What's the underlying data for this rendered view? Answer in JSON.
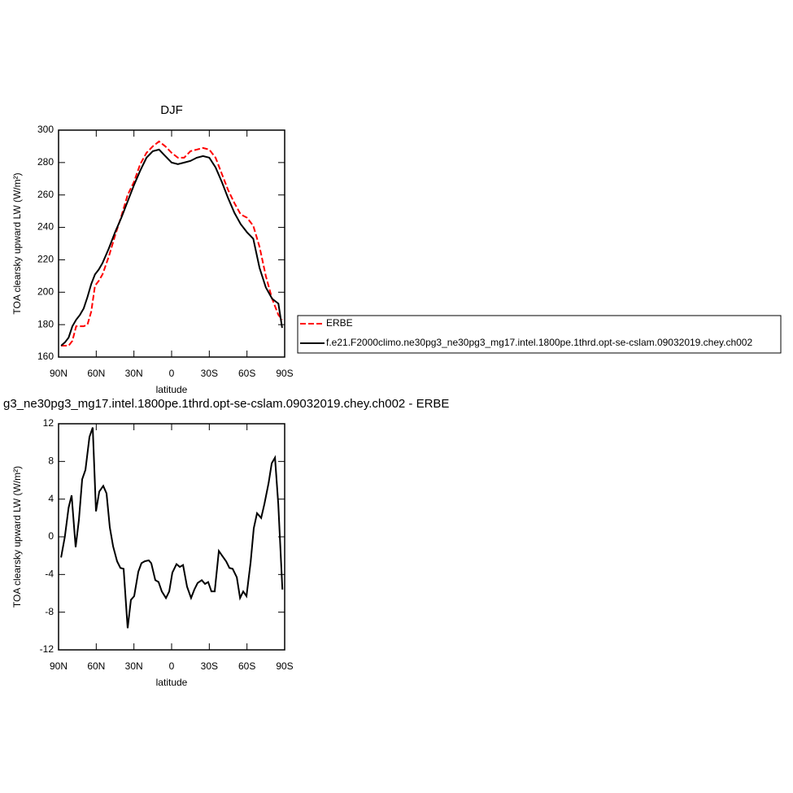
{
  "chart_data": [
    {
      "type": "line",
      "title": "DJF",
      "x_label": "latitude",
      "y_label": "TOA clearsky upward LW (W/m²)",
      "x": [
        88,
        85,
        82,
        79,
        76,
        73,
        70,
        67,
        64,
        61,
        58,
        55,
        50,
        45,
        40,
        35,
        30,
        25,
        20,
        15,
        10,
        5,
        0,
        -5,
        -10,
        -15,
        -20,
        -25,
        -30,
        -35,
        -40,
        -45,
        -50,
        -55,
        -60,
        -65,
        -70,
        -75,
        -80,
        -85,
        -88
      ],
      "series": [
        {
          "name": "ERBE",
          "color": "#ff0000",
          "dashed": true,
          "values": [
            167,
            167,
            167,
            170,
            179,
            179,
            179,
            180,
            188,
            204,
            207,
            211,
            222,
            235,
            247,
            260,
            268,
            279,
            286,
            290,
            293,
            290,
            286,
            283,
            283,
            287,
            288,
            289,
            288,
            283,
            273,
            263,
            255,
            248,
            246,
            241,
            228,
            210,
            196,
            186,
            183
          ]
        },
        {
          "name": "f.e21.F2000climo.ne30pg3_ne30pg3_mg17.intel.1800pe.1thrd.opt-se-cslam.09032019.chey.ch002",
          "color": "#000000",
          "dashed": false,
          "values": [
            167,
            169,
            172,
            179,
            183,
            186,
            190,
            197,
            205,
            211,
            214,
            218,
            227,
            237,
            246,
            256,
            266,
            275,
            283,
            287,
            288,
            284,
            280,
            279,
            280,
            281,
            283,
            284,
            283,
            277,
            268,
            258,
            249,
            242,
            237,
            233,
            215,
            203,
            196,
            193,
            178
          ]
        }
      ],
      "xlim": [
        90,
        -90
      ],
      "xticks": [
        {
          "value": 90,
          "label": "90N"
        },
        {
          "value": 60,
          "label": "60N"
        },
        {
          "value": 30,
          "label": "30N"
        },
        0,
        {
          "value": -30,
          "label": "30S"
        },
        {
          "value": -60,
          "label": "60S"
        },
        {
          "value": -90,
          "label": "90S"
        }
      ],
      "ylim": [
        160,
        300
      ],
      "yticks": [
        160,
        180,
        200,
        220,
        240,
        260,
        280,
        300
      ],
      "legend": "right"
    },
    {
      "type": "line",
      "title": "g3_ne30pg3_mg17.intel.1800pe.1thrd.opt-se-cslam.09032019.chey.ch002 - ERBE",
      "x_label": "latitude",
      "y_label": "TOA clearsky upward LW (W/m²)",
      "x": [
        88,
        85,
        82,
        79.6,
        76.4,
        73.8,
        71.2,
        68.6,
        65.4,
        62.8,
        60.2,
        57.6,
        54.4,
        51.8,
        49.2,
        46.6,
        43.4,
        40.8,
        38.2,
        35,
        32.4,
        29.8,
        26.5,
        24,
        21.4,
        18.2,
        16.2,
        13,
        10.4,
        7.8,
        4.5,
        1.9,
        -0.6,
        -3.9,
        -6.5,
        -9.1,
        -12.3,
        -15.5,
        -18.1,
        -20.7,
        -24,
        -26.6,
        -29.1,
        -31.7,
        -34.3,
        -37.6,
        -40.2,
        -43.4,
        -46,
        -48.6,
        -51.9,
        -54.5,
        -57,
        -59.6,
        -62.9,
        -65.4,
        -68,
        -71.3,
        -73.9,
        -77.2,
        -79.7,
        -82.3,
        -84.9,
        -88.2
      ],
      "values": [
        -2.2,
        0,
        3.1,
        4.4,
        -1.1,
        1.8,
        6.1,
        7.1,
        10.6,
        11.6,
        2.7,
        4.8,
        5.4,
        4.6,
        1.0,
        -1.0,
        -2.6,
        -3.3,
        -3.4,
        -9.7,
        -6.7,
        -6.3,
        -3.7,
        -2.8,
        -2.6,
        -2.5,
        -2.8,
        -4.6,
        -4.8,
        -5.8,
        -6.5,
        -5.8,
        -3.8,
        -2.9,
        -3.2,
        -3.0,
        -5.3,
        -6.5,
        -5.6,
        -4.9,
        -4.6,
        -5.0,
        -4.8,
        -5.8,
        -5.8,
        -1.5,
        -2.0,
        -2.6,
        -3.3,
        -3.4,
        -4.3,
        -6.5,
        -5.8,
        -6.3,
        -2.7,
        0.9,
        2.5,
        2.0,
        3.5,
        5.7,
        7.8,
        8.4,
        3.5,
        -5.6
      ],
      "color": "#000000",
      "xlim": [
        90,
        -90
      ],
      "xticks": [
        {
          "value": 90,
          "label": "90N"
        },
        {
          "value": 60,
          "label": "60N"
        },
        {
          "value": 30,
          "label": "30N"
        },
        0,
        {
          "value": -30,
          "label": "30S"
        },
        {
          "value": -60,
          "label": "60S"
        },
        {
          "value": -90,
          "label": "90S"
        }
      ],
      "ylim": [
        -12,
        12
      ],
      "yticks": [
        -12,
        -8,
        -4,
        0,
        4,
        8,
        12
      ]
    }
  ]
}
